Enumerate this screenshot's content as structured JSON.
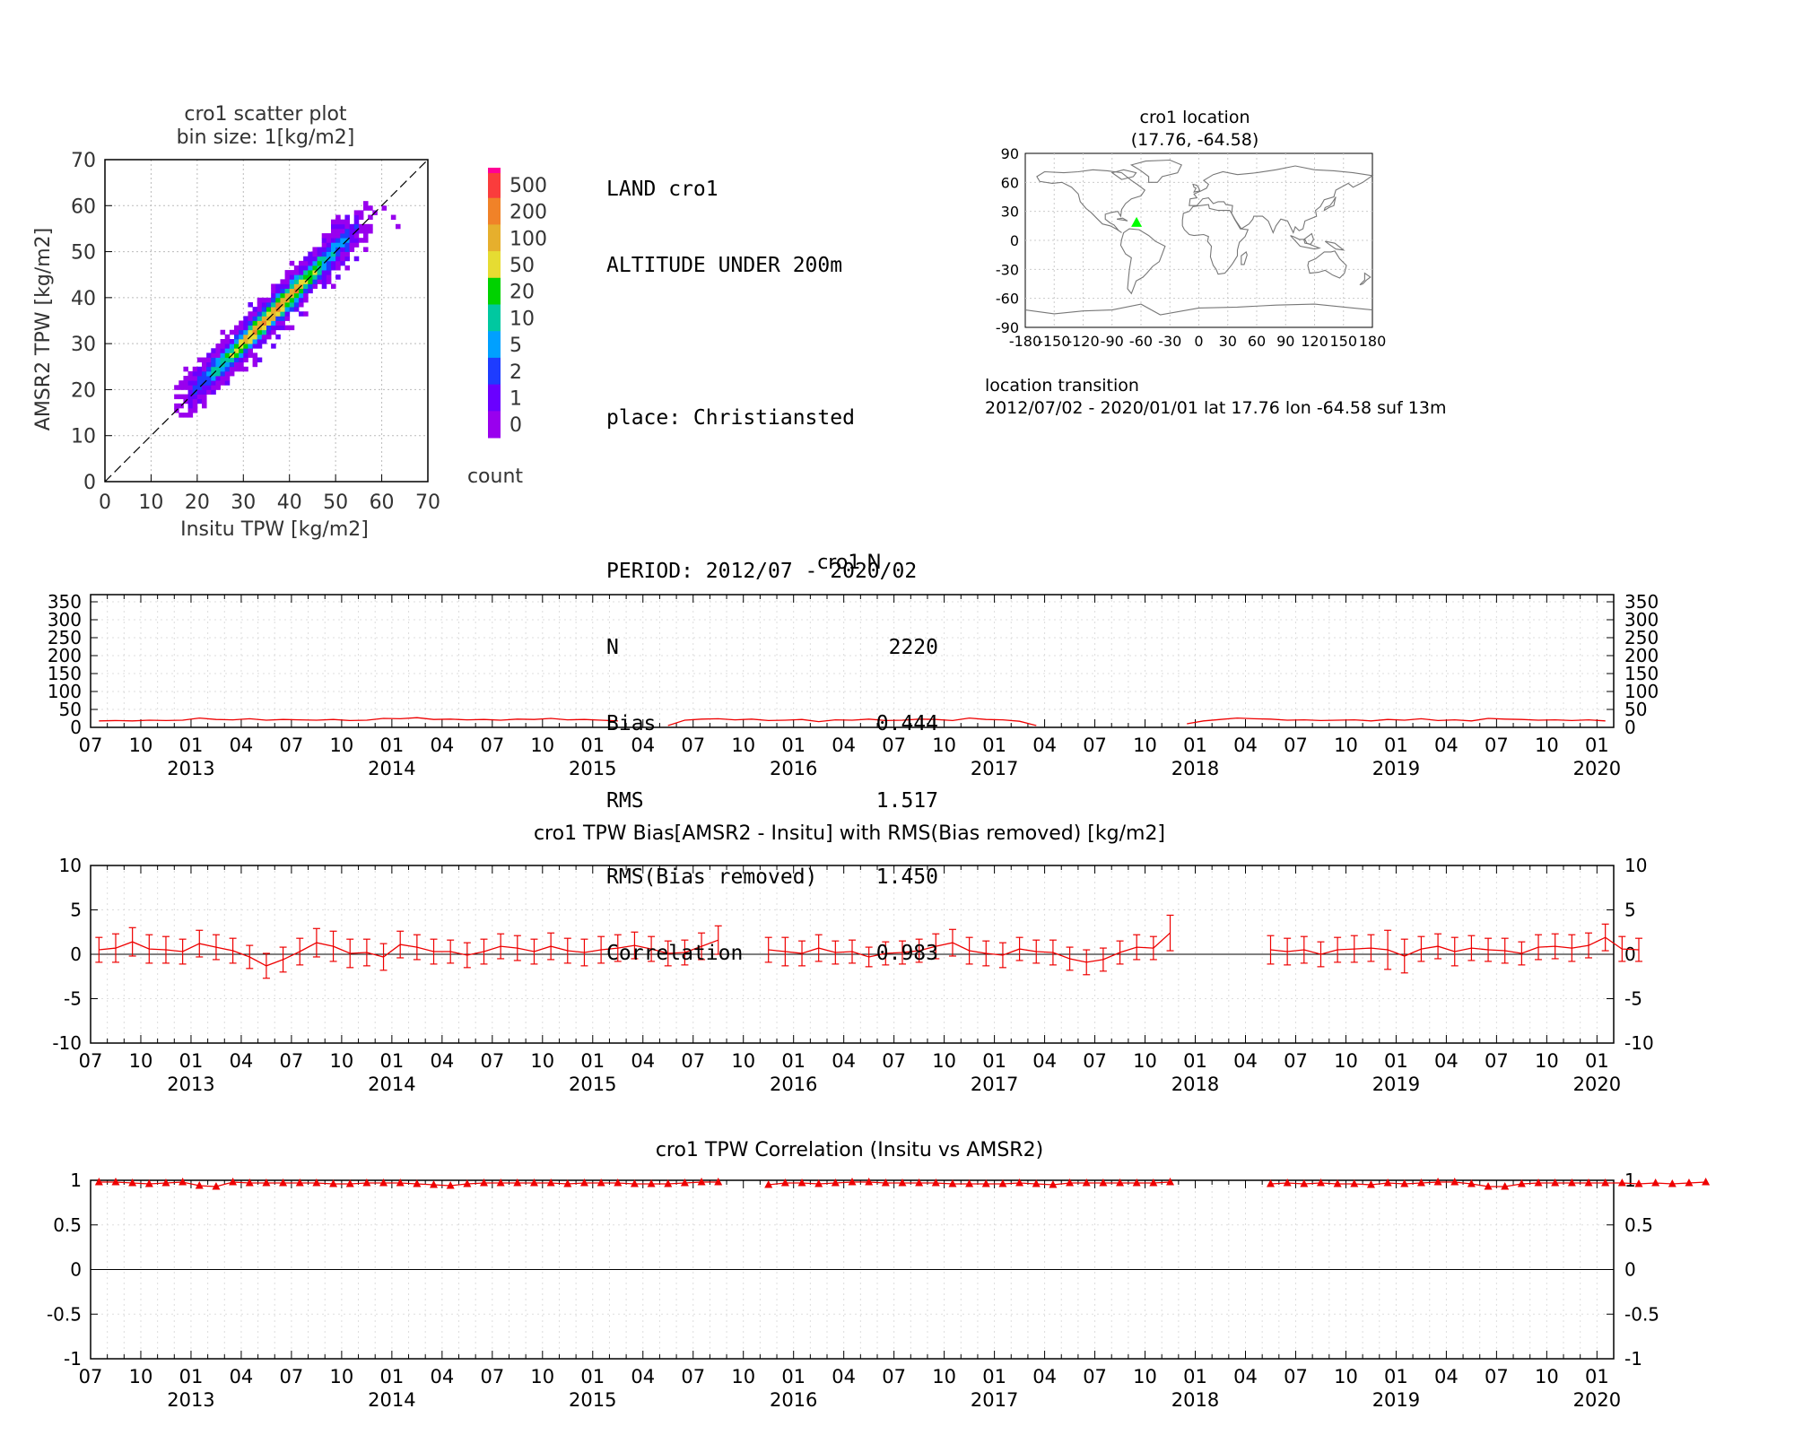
{
  "header": {
    "line1": "LAND cro1",
    "line2": "ALTITUDE UNDER 200m",
    "place": "place: Christiansted",
    "period": "PERIOD: 2012/07 - 2020/02",
    "stats": [
      {
        "label": "N",
        "value": "2220"
      },
      {
        "label": "Bias",
        "value": "0.444"
      },
      {
        "label": "RMS",
        "value": "1.517"
      },
      {
        "label": "RMS(Bias removed)",
        "value": "1.450"
      },
      {
        "label": "Correlation",
        "value": "0.983"
      }
    ]
  },
  "location": {
    "title": "cro1 location",
    "coords": "(17.76, -64.58)",
    "lat": 17.76,
    "lon": -64.58,
    "marker_color": "#00ff00",
    "transition_title": "location transition",
    "transition_line": "2012/07/02 - 2020/01/01 lat 17.76 lon -64.58 suf 13m"
  },
  "time_axis": {
    "month_labels": [
      "07",
      "10",
      "01",
      "04",
      "07",
      "10",
      "01",
      "04",
      "07",
      "10",
      "01",
      "04",
      "07",
      "10",
      "01",
      "04",
      "07",
      "10",
      "01",
      "04",
      "07",
      "10",
      "01",
      "04",
      "07",
      "10",
      "01",
      "04",
      "07",
      "10",
      "01"
    ],
    "year_labels": [
      "2013",
      "2014",
      "2015",
      "2016",
      "2017",
      "2018",
      "2019",
      "2020"
    ]
  },
  "chart_data": [
    {
      "type": "heatmap",
      "title": "cro1 scatter plot",
      "subtitle": "bin size: 1[kg/m2]",
      "xlabel": "Insitu TPW [kg/m2]",
      "ylabel": "AMSR2 TPW [kg/m2]",
      "xlim": [
        0,
        70
      ],
      "ylim": [
        0,
        70
      ],
      "xticks": [
        "0",
        "10",
        "20",
        "30",
        "40",
        "50",
        "60",
        "70"
      ],
      "yticks": [
        "0",
        "10",
        "20",
        "30",
        "40",
        "50",
        "60",
        "70"
      ],
      "colorbar": {
        "label": "count",
        "levels": [
          "0",
          "1",
          "2",
          "5",
          "10",
          "20",
          "50",
          "100",
          "200",
          "500"
        ],
        "colors": [
          "#9900ee",
          "#6a00ff",
          "#1e3cff",
          "#00a0ff",
          "#00c8a0",
          "#00d200",
          "#e6dc32",
          "#e6af2d",
          "#f08228",
          "#fa3c3c",
          "#ff0096"
        ]
      }
    },
    {
      "type": "line",
      "title": "cro1 N",
      "ylim": [
        0,
        370
      ],
      "yticks": [
        "0",
        "50",
        "100",
        "150",
        "200",
        "250",
        "300",
        "350"
      ],
      "color": "#ee0000",
      "start": "2012-07",
      "values": [
        18,
        19,
        18,
        20,
        19,
        20,
        26,
        22,
        21,
        24,
        20,
        22,
        21,
        20,
        22,
        19,
        20,
        25,
        24,
        27,
        22,
        23,
        21,
        22,
        20,
        23,
        22,
        25,
        21,
        22,
        20,
        18,
        null,
        null,
        5,
        20,
        23,
        24,
        21,
        23,
        19,
        20,
        22,
        16,
        21,
        20,
        23,
        19,
        20,
        23,
        22,
        19,
        26,
        22,
        21,
        17,
        5,
        null,
        null,
        null,
        null,
        null,
        null,
        null,
        null,
        10,
        18,
        22,
        26,
        24,
        23,
        20,
        21,
        19,
        20,
        21,
        18,
        22,
        20,
        24,
        19,
        21,
        18,
        25,
        23,
        22,
        20,
        21,
        19,
        21,
        18
      ]
    },
    {
      "type": "line",
      "title": "cro1 TPW Bias[AMSR2 - Insitu] with RMS(Bias removed) [kg/m2]",
      "ylim": [
        -10,
        10
      ],
      "yticks": [
        "-10",
        "-5",
        "0",
        "5",
        "10"
      ],
      "color": "#ee0000",
      "start": "2012-07",
      "values": [
        0.5,
        0.7,
        1.4,
        0.6,
        0.5,
        0.3,
        1.2,
        0.8,
        0.4,
        -0.3,
        -1.3,
        -0.6,
        0.3,
        1.3,
        0.9,
        0.1,
        0.2,
        -0.3,
        1.1,
        0.8,
        0.3,
        0.3,
        -0.1,
        0.3,
        0.9,
        0.7,
        0.3,
        0.9,
        0.4,
        0.2,
        0.5,
        0.7,
        1.0,
        0.6,
        0.1,
        0.2,
        0.9,
        1.6,
        null,
        null,
        0.5,
        0.3,
        0.1,
        0.7,
        0.2,
        0.3,
        -0.3,
        0.1,
        0.2,
        0.4,
        0.9,
        1.3,
        0.4,
        0.1,
        -0.1,
        0.6,
        0.3,
        0.2,
        -0.5,
        -0.9,
        -0.6,
        0.2,
        0.8,
        0.7,
        2.4,
        null,
        null,
        null,
        null,
        null,
        0.5,
        0.3,
        0.5,
        0.0,
        0.5,
        0.6,
        0.7,
        0.5,
        -0.2,
        0.6,
        0.9,
        0.3,
        0.7,
        0.5,
        0.4,
        0.1,
        0.8,
        0.9,
        0.7,
        1.0,
        1.9,
        0.6,
        0.5
      ],
      "errors": [
        1.4,
        1.6,
        1.6,
        1.6,
        1.5,
        1.4,
        1.5,
        1.4,
        1.4,
        1.3,
        1.4,
        1.4,
        1.5,
        1.6,
        1.7,
        1.6,
        1.5,
        1.5,
        1.5,
        1.4,
        1.4,
        1.3,
        1.4,
        1.4,
        1.4,
        1.4,
        1.4,
        1.5,
        1.4,
        1.5,
        1.5,
        1.5,
        1.5,
        1.4,
        1.4,
        1.4,
        1.5,
        1.6,
        null,
        null,
        1.4,
        1.6,
        1.4,
        1.5,
        1.3,
        1.3,
        1.1,
        1.3,
        1.3,
        1.3,
        1.4,
        1.5,
        1.5,
        1.4,
        1.4,
        1.3,
        1.3,
        1.4,
        1.3,
        1.4,
        1.3,
        1.3,
        1.4,
        1.3,
        2.0,
        null,
        null,
        null,
        null,
        null,
        1.6,
        1.5,
        1.5,
        1.4,
        1.4,
        1.5,
        1.5,
        2.2,
        1.9,
        1.4,
        1.4,
        1.6,
        1.4,
        1.3,
        1.4,
        1.3,
        1.4,
        1.4,
        1.5,
        1.4,
        1.5,
        1.4,
        1.3
      ]
    },
    {
      "type": "line",
      "title": "cro1 TPW Correlation (Insitu vs AMSR2)",
      "ylim": [
        -1,
        1
      ],
      "yticks": [
        "-1",
        "-0.5",
        "0",
        "0.5",
        "1"
      ],
      "color": "#ee0000",
      "start": "2012-07",
      "values": [
        0.98,
        0.98,
        0.97,
        0.96,
        0.97,
        0.98,
        0.94,
        0.93,
        0.98,
        0.97,
        0.97,
        0.97,
        0.97,
        0.97,
        0.96,
        0.96,
        0.97,
        0.97,
        0.97,
        0.96,
        0.95,
        0.94,
        0.96,
        0.97,
        0.97,
        0.97,
        0.97,
        0.97,
        0.96,
        0.97,
        0.97,
        0.97,
        0.96,
        0.96,
        0.96,
        0.97,
        0.98,
        0.98,
        null,
        null,
        0.95,
        0.97,
        0.97,
        0.96,
        0.97,
        0.98,
        0.98,
        0.97,
        0.97,
        0.97,
        0.97,
        0.96,
        0.96,
        0.96,
        0.96,
        0.97,
        0.96,
        0.95,
        0.97,
        0.97,
        0.97,
        0.97,
        0.97,
        0.97,
        0.98,
        null,
        null,
        null,
        null,
        null,
        0.96,
        0.97,
        0.96,
        0.97,
        0.96,
        0.96,
        0.95,
        0.97,
        0.96,
        0.97,
        0.98,
        0.98,
        0.96,
        0.93,
        0.93,
        0.96,
        0.97,
        0.97,
        0.97,
        0.97,
        0.97,
        0.97,
        0.96,
        0.97,
        0.96,
        0.97,
        0.98
      ]
    }
  ]
}
